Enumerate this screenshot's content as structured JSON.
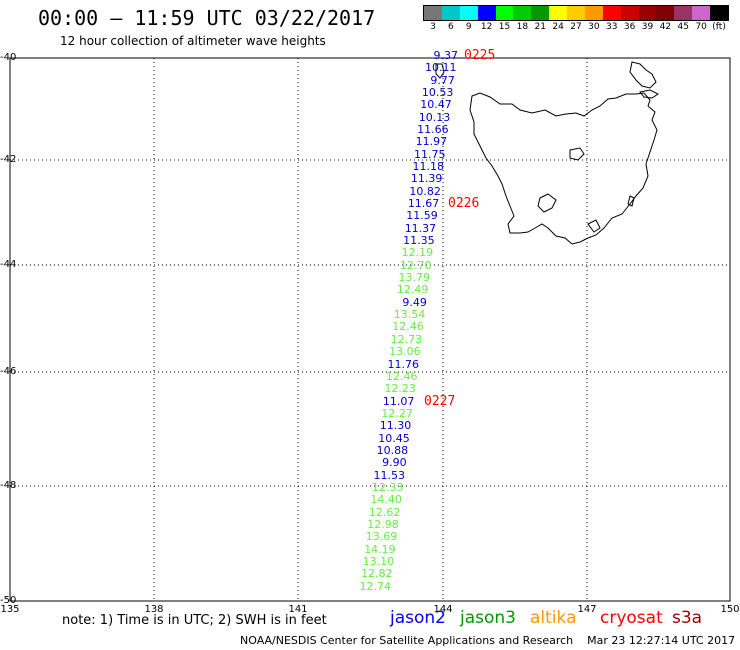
{
  "header": {
    "title": "00:00 – 11:59 UTC 03/22/2017",
    "subtitle": "12 hour collection of altimeter wave heights"
  },
  "colorbar": {
    "colors": [
      "#777777",
      "#00c8c8",
      "#00ffff",
      "#0000ff",
      "#00ff00",
      "#00cc00",
      "#009900",
      "#ffff00",
      "#ffcc00",
      "#ff9900",
      "#ff0000",
      "#cc0000",
      "#990000",
      "#800000",
      "#993366",
      "#cc66cc",
      "#000000"
    ],
    "labels": [
      "3",
      "6",
      "9",
      "12",
      "15",
      "18",
      "21",
      "24",
      "27",
      "30",
      "33",
      "36",
      "39",
      "42",
      "45",
      "70",
      "(ft)"
    ]
  },
  "map": {
    "lat_labels": [
      "-40",
      "-42",
      "-44",
      "-46",
      "-48",
      "-50"
    ],
    "lon_labels": [
      "135",
      "138",
      "141",
      "144",
      "147",
      "150"
    ]
  },
  "track": {
    "times": [
      "0225",
      "0226",
      "0227"
    ],
    "values": [
      {
        "v": "9.37",
        "c": "#0000cc"
      },
      {
        "v": "10.11",
        "c": "#0000cc"
      },
      {
        "v": "9.77",
        "c": "#0000cc"
      },
      {
        "v": "10.53",
        "c": "#0000cc"
      },
      {
        "v": "10.47",
        "c": "#0000cc"
      },
      {
        "v": "10.13",
        "c": "#0000cc"
      },
      {
        "v": "11.66",
        "c": "#0000cc"
      },
      {
        "v": "11.97",
        "c": "#0000cc"
      },
      {
        "v": "11.75",
        "c": "#0000cc"
      },
      {
        "v": "11.18",
        "c": "#0000cc"
      },
      {
        "v": "11.39",
        "c": "#0000cc"
      },
      {
        "v": "10.82",
        "c": "#0000cc"
      },
      {
        "v": "11.67",
        "c": "#0000cc"
      },
      {
        "v": "11.59",
        "c": "#0000cc"
      },
      {
        "v": "11.37",
        "c": "#0000cc"
      },
      {
        "v": "11.35",
        "c": "#0000cc"
      },
      {
        "v": "12.19",
        "c": "#66ee44"
      },
      {
        "v": "12.70",
        "c": "#66ee44"
      },
      {
        "v": "13.79",
        "c": "#66ee44"
      },
      {
        "v": "12.49",
        "c": "#66ee44"
      },
      {
        "v": "9.49",
        "c": "#0000cc"
      },
      {
        "v": "13.54",
        "c": "#66ee44"
      },
      {
        "v": "12.46",
        "c": "#66ee44"
      },
      {
        "v": "12.73",
        "c": "#66ee44"
      },
      {
        "v": "13.06",
        "c": "#66ee44"
      },
      {
        "v": "11.76",
        "c": "#0000cc"
      },
      {
        "v": "12.46",
        "c": "#66ee44"
      },
      {
        "v": "12.23",
        "c": "#66ee44"
      },
      {
        "v": "11.07",
        "c": "#0000cc"
      },
      {
        "v": "12.27",
        "c": "#66ee44"
      },
      {
        "v": "11.30",
        "c": "#0000cc"
      },
      {
        "v": "10.45",
        "c": "#0000cc"
      },
      {
        "v": "10.88",
        "c": "#0000cc"
      },
      {
        "v": "9.90",
        "c": "#0000cc"
      },
      {
        "v": "11.53",
        "c": "#0000cc"
      },
      {
        "v": "12.33",
        "c": "#66ee44"
      },
      {
        "v": "14.40",
        "c": "#66ee44"
      },
      {
        "v": "12.62",
        "c": "#66ee44"
      },
      {
        "v": "12.98",
        "c": "#66ee44"
      },
      {
        "v": "13.69",
        "c": "#66ee44"
      },
      {
        "v": "14.19",
        "c": "#66ee44"
      },
      {
        "v": "13.10",
        "c": "#66ee44"
      },
      {
        "v": "12.82",
        "c": "#66ee44"
      },
      {
        "v": "12.74",
        "c": "#66ee44"
      }
    ]
  },
  "footer": {
    "note": "note: 1) Time is in UTC; 2) SWH is in feet",
    "satellites": [
      {
        "name": "jason2",
        "color": "#0000ff"
      },
      {
        "name": "jason3",
        "color": "#009900"
      },
      {
        "name": "altika",
        "color": "#ff9900"
      },
      {
        "name": "cryosat",
        "color": "#ff0000"
      },
      {
        "name": "s3a",
        "color": "#990000"
      }
    ],
    "credit": "NOAA/NESDIS Center for Satellite Applications and Research    Mar 23 12:27:14 UTC 2017"
  }
}
